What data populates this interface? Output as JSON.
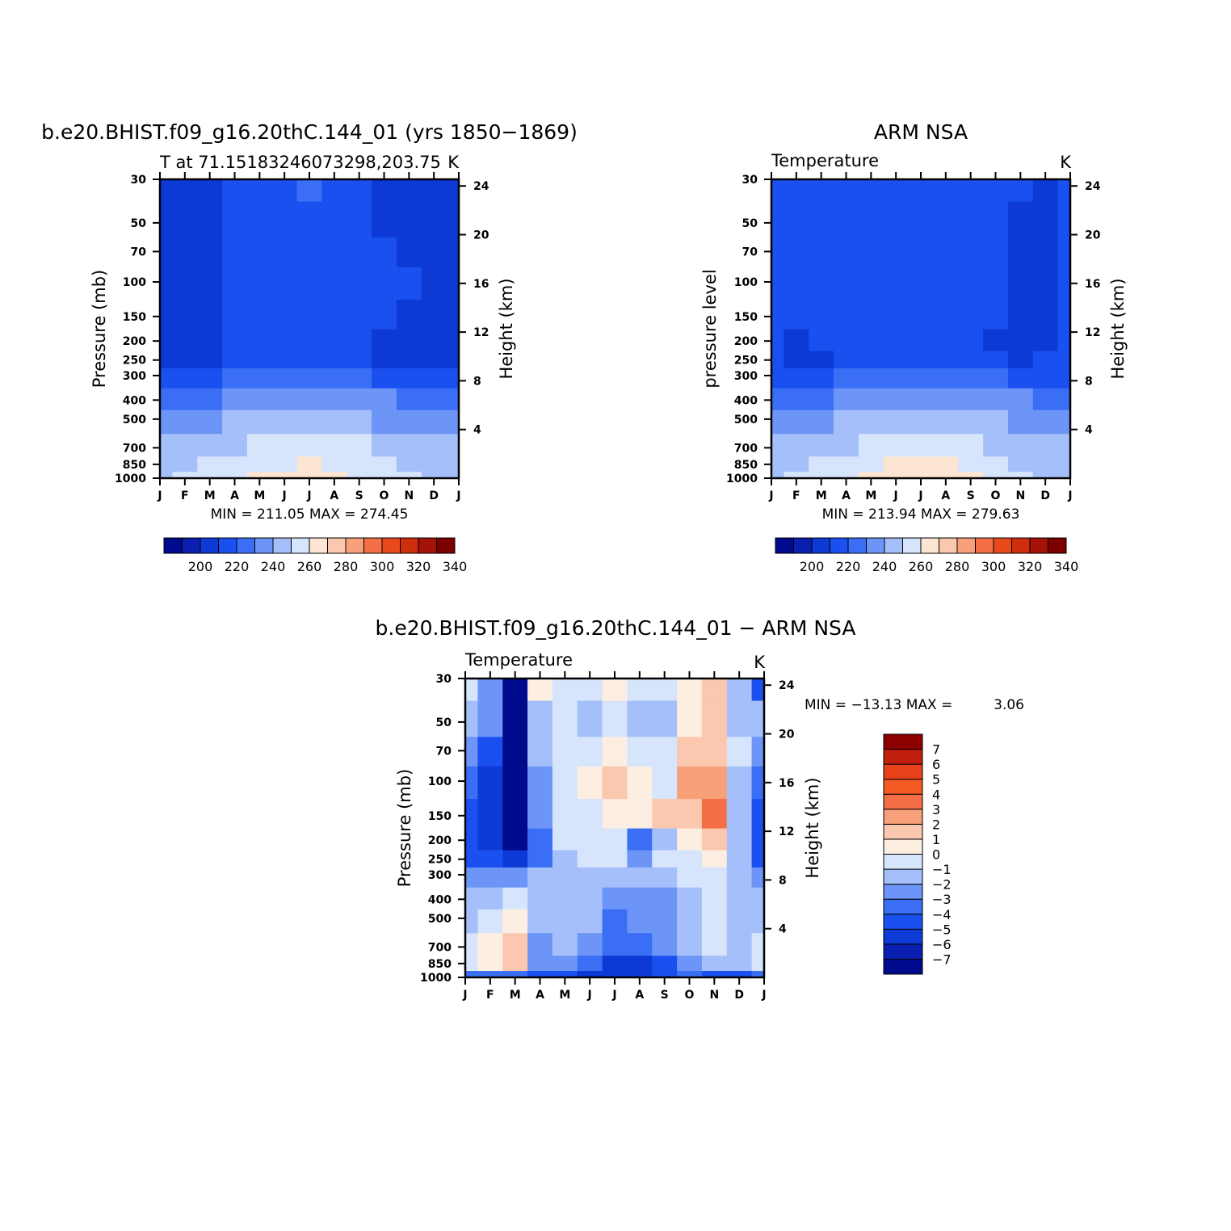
{
  "chart_data": [
    {
      "type": "heatmap",
      "title": "b.e20.BHIST.f09_g16.20thC.144_01 (yrs 1850−1869)",
      "subtitle_left": "T at 71.15183246073298,203.75",
      "subtitle_right": "K",
      "ylabel": "Pressure (mb)",
      "ylabel_right": "Height (km)",
      "x_tick_labels": [
        "J",
        "F",
        "M",
        "A",
        "M",
        "J",
        "J",
        "A",
        "S",
        "O",
        "N",
        "D",
        "J"
      ],
      "y_tick_labels": [
        "30",
        "50",
        "70",
        "100",
        "150",
        "200",
        "250",
        "300",
        "400",
        "500",
        "700",
        "850",
        "1000"
      ],
      "y_ticks": [
        30,
        50,
        70,
        100,
        150,
        200,
        250,
        300,
        400,
        500,
        700,
        850,
        1000
      ],
      "y2_tick_labels": [
        "24",
        "20",
        "16",
        "12",
        "8",
        "4"
      ],
      "y2_ticks": [
        24,
        20,
        16,
        12,
        8,
        4
      ],
      "stats": "MIN = 211.05 MAX = 274.45",
      "min": 211.05,
      "max": 274.45,
      "colorbar_labels": [
        "200",
        "220",
        "240",
        "260",
        "280",
        "300",
        "320",
        "340"
      ],
      "levels": [
        190,
        200,
        210,
        220,
        230,
        240,
        250,
        260,
        270,
        280,
        290,
        300,
        310,
        320,
        330,
        340,
        350
      ],
      "grid": false,
      "values_desc": "pressure rows (1000→30 mb) × months Jan→Jan",
      "pressure_rows": [
        1000,
        850,
        700,
        500,
        400,
        300,
        250,
        200,
        150,
        100,
        70,
        50,
        30
      ],
      "values": [
        [
          258,
          262,
          264,
          268,
          271,
          273,
          274,
          272,
          268,
          264,
          261,
          259,
          258
        ],
        [
          256,
          258,
          261,
          265,
          267,
          269,
          270,
          269,
          266,
          262,
          259,
          257,
          256
        ],
        [
          252,
          253,
          255,
          258,
          261,
          263,
          264,
          263,
          260,
          257,
          254,
          253,
          252
        ],
        [
          244,
          245,
          247,
          250,
          253,
          255,
          256,
          255,
          252,
          249,
          247,
          246,
          244
        ],
        [
          236,
          237,
          239,
          242,
          245,
          247,
          248,
          247,
          244,
          241,
          239,
          238,
          236
        ],
        [
          224,
          225,
          227,
          230,
          232,
          233,
          233,
          232,
          230,
          227,
          226,
          225,
          224
        ],
        [
          216,
          216,
          218,
          224,
          227,
          228,
          228,
          227,
          224,
          219,
          217,
          216,
          216
        ],
        [
          214,
          214,
          216,
          223,
          226,
          226,
          226,
          225,
          223,
          219,
          216,
          215,
          214
        ],
        [
          212,
          213,
          216,
          222,
          225,
          225,
          225,
          225,
          224,
          222,
          218,
          214,
          212
        ],
        [
          212,
          213,
          217,
          223,
          225,
          225,
          225,
          225,
          225,
          224,
          220,
          215,
          212
        ],
        [
          212,
          213,
          218,
          223,
          225,
          226,
          226,
          226,
          225,
          221,
          216,
          214,
          212
        ],
        [
          213,
          214,
          219,
          224,
          226,
          226,
          227,
          226,
          223,
          218,
          215,
          214,
          213
        ],
        [
          214,
          215,
          219,
          224,
          226,
          227,
          231,
          226,
          222,
          218,
          216,
          215,
          214
        ]
      ]
    },
    {
      "type": "heatmap",
      "title": "ARM NSA",
      "subtitle_left": "Temperature",
      "subtitle_right": "K",
      "ylabel": "pressure level",
      "ylabel_right": "Height (km)",
      "x_tick_labels": [
        "J",
        "F",
        "M",
        "A",
        "M",
        "J",
        "J",
        "A",
        "S",
        "O",
        "N",
        "D",
        "J"
      ],
      "y_tick_labels": [
        "30",
        "50",
        "70",
        "100",
        "150",
        "200",
        "250",
        "300",
        "400",
        "500",
        "700",
        "850",
        "1000"
      ],
      "y_ticks": [
        30,
        50,
        70,
        100,
        150,
        200,
        250,
        300,
        400,
        500,
        700,
        850,
        1000
      ],
      "y2_tick_labels": [
        "24",
        "20",
        "16",
        "12",
        "8",
        "4"
      ],
      "y2_ticks": [
        24,
        20,
        16,
        12,
        8,
        4
      ],
      "stats": "MIN = 213.94 MAX = 279.63",
      "min": 213.94,
      "max": 279.63,
      "colorbar_labels": [
        "200",
        "220",
        "240",
        "260",
        "280",
        "300",
        "320",
        "340"
      ],
      "levels": [
        190,
        200,
        210,
        220,
        230,
        240,
        250,
        260,
        270,
        280,
        290,
        300,
        310,
        320,
        330,
        340,
        350
      ],
      "grid": false,
      "pressure_rows": [
        1000,
        850,
        700,
        500,
        400,
        300,
        250,
        200,
        150,
        100,
        70,
        50,
        30
      ],
      "values": [
        [
          258,
          262,
          265,
          269,
          273,
          276,
          278,
          276,
          272,
          266,
          261,
          259,
          258
        ],
        [
          256,
          258,
          261,
          265,
          268,
          271,
          272,
          271,
          268,
          263,
          259,
          257,
          256
        ],
        [
          252,
          253,
          255,
          258,
          261,
          264,
          265,
          264,
          261,
          258,
          255,
          253,
          252
        ],
        [
          244,
          245,
          247,
          250,
          253,
          256,
          257,
          256,
          253,
          250,
          248,
          246,
          244
        ],
        [
          236,
          237,
          239,
          242,
          245,
          248,
          249,
          248,
          245,
          242,
          240,
          238,
          236
        ],
        [
          226,
          227,
          229,
          231,
          233,
          234,
          235,
          234,
          232,
          230,
          228,
          227,
          226
        ],
        [
          220,
          219,
          219,
          223,
          226,
          227,
          227,
          226,
          223,
          220,
          219,
          220,
          220
        ],
        [
          221,
          219,
          220,
          224,
          226,
          227,
          227,
          226,
          224,
          219,
          217,
          218,
          221
        ],
        [
          222,
          221,
          222,
          224,
          226,
          226,
          226,
          226,
          225,
          220,
          217,
          217,
          222
        ],
        [
          224,
          224,
          224,
          225,
          226,
          226,
          226,
          226,
          225,
          221,
          217,
          217,
          224
        ],
        [
          224,
          224,
          224,
          225,
          226,
          226,
          226,
          226,
          225,
          221,
          217,
          217,
          224
        ],
        [
          224,
          224,
          224,
          225,
          226,
          226,
          226,
          226,
          226,
          223,
          217,
          217,
          224
        ],
        [
          224,
          224,
          224,
          225,
          226,
          226,
          228,
          226,
          226,
          226,
          220,
          218,
          224
        ]
      ]
    },
    {
      "type": "heatmap",
      "title": "b.e20.BHIST.f09_g16.20thC.144_01 − ARM NSA",
      "subtitle_left": "Temperature",
      "subtitle_right": "K",
      "ylabel": "Pressure (mb)",
      "ylabel_right": "Height (km)",
      "x_tick_labels": [
        "J",
        "F",
        "M",
        "A",
        "M",
        "J",
        "J",
        "A",
        "S",
        "O",
        "N",
        "D",
        "J"
      ],
      "y_tick_labels": [
        "30",
        "50",
        "70",
        "100",
        "150",
        "200",
        "250",
        "300",
        "400",
        "500",
        "700",
        "850",
        "1000"
      ],
      "y_ticks": [
        30,
        50,
        70,
        100,
        150,
        200,
        250,
        300,
        400,
        500,
        700,
        850,
        1000
      ],
      "y2_tick_labels": [
        "24",
        "20",
        "16",
        "12",
        "8",
        "4"
      ],
      "y2_ticks": [
        24,
        20,
        16,
        12,
        8,
        4
      ],
      "stats_label": "MIN = −13.13 MAX =",
      "stats_value": "3.06",
      "min": -13.13,
      "max": 3.06,
      "colorbar_labels": [
        "7",
        "6",
        "5",
        "4",
        "3",
        "2",
        "1",
        "0",
        "−1",
        "−2",
        "−3",
        "−4",
        "−5",
        "−6",
        "−7"
      ],
      "levels": [
        -8,
        -7,
        -6,
        -5,
        -4,
        -3,
        -2,
        -1,
        0,
        1,
        2,
        3,
        4,
        5,
        6,
        7,
        8
      ],
      "grid": false,
      "pressure_rows": [
        1000,
        850,
        700,
        500,
        400,
        300,
        250,
        200,
        150,
        100,
        70,
        50,
        30
      ],
      "values": [
        [
          -4,
          -3.5,
          -4,
          -4.5,
          -5,
          -5.5,
          -6,
          -6,
          -5,
          -4,
          -4.5,
          -5,
          -4
        ],
        [
          -1,
          0.5,
          1.8,
          -3,
          -2.5,
          -3.5,
          -5.5,
          -6,
          -4.5,
          -3,
          -1.5,
          -2,
          -1
        ],
        [
          -1,
          0.5,
          1.2,
          -2.5,
          -2,
          -3,
          -4,
          -3.5,
          -3,
          -1.5,
          -0.5,
          -1.5,
          -1
        ],
        [
          -1.5,
          -0.5,
          0.3,
          -2,
          -1.5,
          -2,
          -3.5,
          -3,
          -2.5,
          -1.5,
          -0.8,
          -1.5,
          -1.5
        ],
        [
          -2,
          -1.5,
          -1,
          -1.5,
          -1.5,
          -2,
          -2.5,
          -2.5,
          -2.5,
          -1.5,
          -1,
          -1.5,
          -2
        ],
        [
          -3,
          -2.5,
          -3,
          -2,
          -2,
          -1.5,
          -1.5,
          -1.5,
          -2,
          -1,
          -0.5,
          -1.5,
          -3
        ],
        [
          -5,
          -5,
          -6,
          -4,
          -1.5,
          -1,
          -1,
          -3,
          -1,
          -0.5,
          0.5,
          -1.5,
          -5
        ],
        [
          -5,
          -6,
          -7.5,
          -3.5,
          -1,
          -1,
          -1,
          -4,
          -2,
          0.5,
          1.5,
          -2,
          -5
        ],
        [
          -5,
          -6,
          -7.5,
          -3,
          -1,
          -0.5,
          0.5,
          0.3,
          1,
          1.5,
          3,
          -1.5,
          -5
        ],
        [
          -4,
          -5.5,
          -8,
          -2.5,
          -0.5,
          0.5,
          1,
          0.5,
          -0.5,
          2,
          2.5,
          -1.5,
          -4
        ],
        [
          -2.5,
          -4.5,
          -8.5,
          -2,
          -0.5,
          -0.5,
          0.3,
          -0.3,
          -1,
          1,
          1.5,
          -1,
          -2.5
        ],
        [
          -1.5,
          -3,
          -9,
          -1.5,
          -0.5,
          -1.5,
          -1,
          -1.5,
          -1.5,
          0.5,
          1.5,
          -1.5,
          -1.5
        ],
        [
          -1,
          -3,
          -9,
          0.5,
          -0.5,
          -1,
          0.3,
          -1,
          -1,
          0.5,
          1.5,
          -1.5,
          -5
        ]
      ]
    }
  ],
  "colors": {
    "scale": [
      "#000a8c",
      "#0a1fb0",
      "#0d3ad4",
      "#1a50f0",
      "#3a6ff5",
      "#6d95f7",
      "#a4bff9",
      "#d6e4fc",
      "#fde5d3",
      "#fbc7ae",
      "#f7a07a",
      "#f46f45",
      "#e84a1b",
      "#cf2e0c",
      "#a41208",
      "#7c0000"
    ],
    "diff_scale": [
      "#000a8c",
      "#0a1fb0",
      "#0d3ad4",
      "#1a50f0",
      "#3a6ff5",
      "#6d95f7",
      "#a4bff9",
      "#d6e4fc",
      "#fdeee2",
      "#fbc7ae",
      "#f7a07a",
      "#f46f45",
      "#f45a24",
      "#e8421a",
      "#bf1f0c",
      "#8c0000"
    ]
  }
}
